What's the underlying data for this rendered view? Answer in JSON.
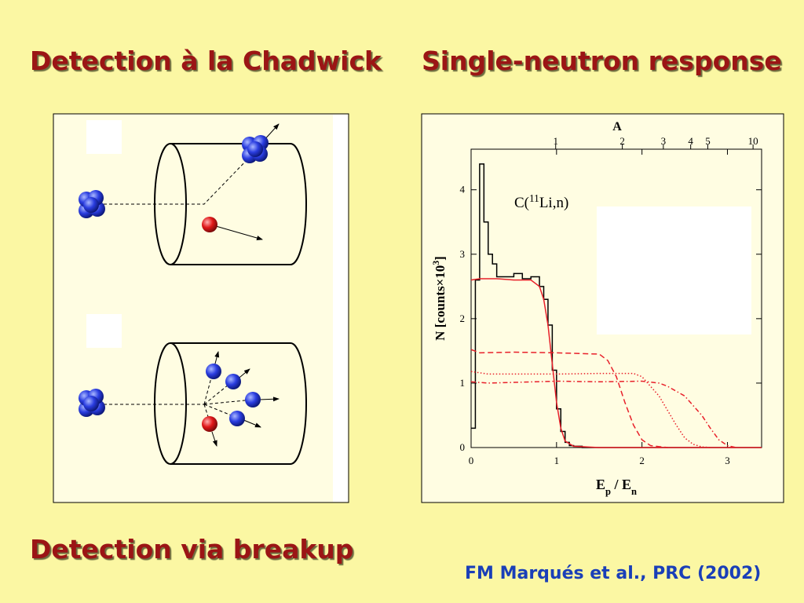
{
  "heading_left": "Detection à la Chadwick",
  "heading_right": "Single-neutron response",
  "heading_bottom": "Detection via breakup",
  "citation": "FM Marqués et al., PRC (2002)",
  "chart_data": {
    "type": "line",
    "x2label": "A",
    "xlabel": [
      "E",
      "p",
      " / E",
      "n"
    ],
    "ylabel": [
      "N [counts×10",
      "3",
      "]"
    ],
    "annotation": [
      "C(",
      "11",
      "Li,n)"
    ],
    "xlim": [
      0,
      3.4
    ],
    "ylim": [
      0,
      4.63
    ],
    "xticks": [
      0,
      1,
      2,
      3
    ],
    "yticks": [
      0,
      1,
      2,
      3,
      4
    ],
    "x2ticks": [
      {
        "value": 0.99,
        "label": "1"
      },
      {
        "value": 1.77,
        "label": "2"
      },
      {
        "value": 2.25,
        "label": "3"
      },
      {
        "value": 2.57,
        "label": "4"
      },
      {
        "value": 2.77,
        "label": "5"
      },
      {
        "value": 3.3,
        "label": "10"
      }
    ],
    "series": [
      {
        "color": "#000000",
        "step": true,
        "dash": "none",
        "x": [
          0,
          0.05,
          0.1,
          0.15,
          0.2,
          0.25,
          0.3,
          0.4,
          0.5,
          0.6,
          0.7,
          0.8,
          0.85,
          0.9,
          0.95,
          1.0,
          1.05,
          1.1,
          1.15,
          1.2,
          1.3,
          3.4
        ],
        "values": [
          0.3,
          2.6,
          4.4,
          3.5,
          3.0,
          2.85,
          2.65,
          2.65,
          2.7,
          2.62,
          2.65,
          2.5,
          2.3,
          1.9,
          1.2,
          0.6,
          0.25,
          0.08,
          0.03,
          0.02,
          0,
          0
        ]
      },
      {
        "color": "#e8202a",
        "step": false,
        "dash": "none",
        "x": [
          0,
          0.1,
          0.3,
          0.5,
          0.7,
          0.8,
          0.85,
          0.9,
          0.95,
          1.0,
          1.05,
          1.1,
          1.2,
          1.5,
          3.4
        ],
        "values": [
          2.6,
          2.62,
          2.62,
          2.6,
          2.6,
          2.5,
          2.3,
          1.9,
          1.3,
          0.7,
          0.3,
          0.1,
          0.02,
          0,
          0
        ]
      },
      {
        "color": "#e8202a",
        "step": false,
        "dash": "7 4",
        "x": [
          0,
          0.1,
          0.5,
          1.0,
          1.5,
          1.6,
          1.7,
          1.8,
          1.9,
          2.0,
          2.1,
          2.3
        ],
        "values": [
          1.52,
          1.47,
          1.48,
          1.47,
          1.45,
          1.35,
          1.1,
          0.7,
          0.35,
          0.12,
          0.03,
          0
        ]
      },
      {
        "color": "#e8202a",
        "step": false,
        "dash": "1.5 2.5",
        "x": [
          0,
          0.2,
          1.0,
          1.5,
          1.9,
          2.0,
          2.2,
          2.4,
          2.5,
          2.6,
          2.7,
          2.8
        ],
        "values": [
          1.18,
          1.14,
          1.14,
          1.15,
          1.15,
          1.1,
          0.8,
          0.35,
          0.15,
          0.05,
          0.01,
          0
        ]
      },
      {
        "color": "#e8202a",
        "step": false,
        "dash": "6 3 1.5 3",
        "x": [
          0,
          0.2,
          1.0,
          1.5,
          2.0,
          2.2,
          2.3,
          2.5,
          2.7,
          2.8,
          2.9,
          3.0,
          3.1
        ],
        "values": [
          1.02,
          1.0,
          1.03,
          1.02,
          1.03,
          1.0,
          0.95,
          0.8,
          0.5,
          0.3,
          0.12,
          0.03,
          0
        ]
      }
    ]
  }
}
